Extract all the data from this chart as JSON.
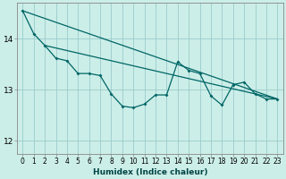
{
  "xlabel": "Humidex (Indice chaleur)",
  "ylabel": "",
  "background_color": "#cceee8",
  "grid_color": "#99cccc",
  "line_color": "#006666",
  "xlim": [
    -0.5,
    23.5
  ],
  "ylim": [
    11.75,
    14.7
  ],
  "yticks": [
    12,
    13,
    14
  ],
  "xticks": [
    0,
    1,
    2,
    3,
    4,
    5,
    6,
    7,
    8,
    9,
    10,
    11,
    12,
    13,
    14,
    15,
    16,
    17,
    18,
    19,
    20,
    21,
    22,
    23
  ],
  "series1_x": [
    0,
    1,
    2,
    3,
    4,
    5,
    6,
    7,
    8,
    9,
    10,
    11,
    12,
    13,
    14,
    15,
    16,
    17,
    18,
    19,
    20,
    21,
    22,
    23
  ],
  "series1_y": [
    14.55,
    14.1,
    13.87,
    13.62,
    13.57,
    13.32,
    13.32,
    13.28,
    12.92,
    12.68,
    12.65,
    12.72,
    12.9,
    12.9,
    13.55,
    13.38,
    13.32,
    12.88,
    12.7,
    13.1,
    13.15,
    12.92,
    12.82,
    12.82
  ],
  "series2_x": [
    0,
    23
  ],
  "series2_y": [
    14.55,
    12.82
  ],
  "series3_x": [
    2,
    23
  ],
  "series3_y": [
    13.87,
    12.82
  ]
}
